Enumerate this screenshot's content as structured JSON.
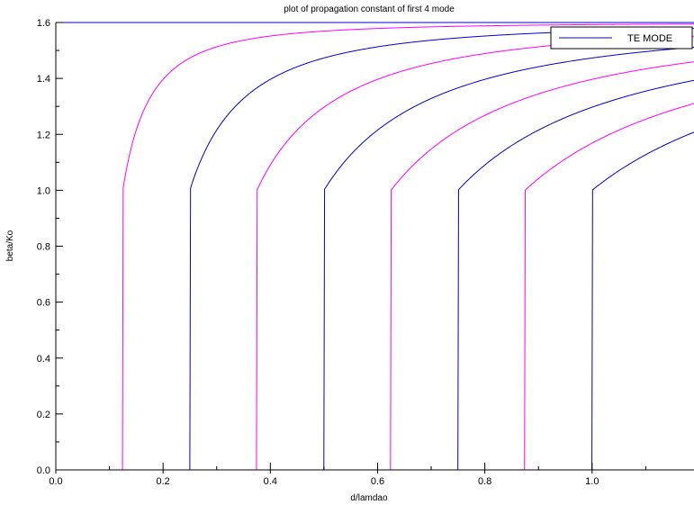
{
  "chart_data": {
    "type": "line",
    "title": "plot of propagation constant of first 4 mode",
    "xlabel": "d/lamdao",
    "ylabel": "beta/Ko",
    "xlim": [
      0.0,
      1.19
    ],
    "ylim": [
      0.0,
      1.6
    ],
    "x_ticks": [
      "0.0",
      "0.2",
      "0.4",
      "0.6",
      "0.8",
      "1.0"
    ],
    "y_ticks": [
      "0.0",
      "0.2",
      "0.4",
      "0.6",
      "0.8",
      "1.0",
      "1.2",
      "1.4",
      "1.6"
    ],
    "grid": false,
    "legend": {
      "position": "top-right",
      "entries": [
        {
          "label": "TE MODE",
          "color": "#0000cc"
        }
      ]
    },
    "colors": {
      "te": "#0000cc",
      "tm": "#ff00ff"
    },
    "parameters": {
      "n_max": 1.6,
      "n_min": 1.0
    },
    "series": [
      {
        "color": "#ff00ff",
        "cutoff": 0.125,
        "n_sub": 1.0,
        "n_core": 1.6
      },
      {
        "color": "#0000cc",
        "cutoff": 0.25,
        "n_sub": 1.0,
        "n_core": 1.6
      },
      {
        "color": "#ff00ff",
        "cutoff": 0.375,
        "n_sub": 1.0,
        "n_core": 1.6
      },
      {
        "color": "#0000cc",
        "cutoff": 0.5,
        "n_sub": 1.0,
        "n_core": 1.6
      },
      {
        "color": "#ff00ff",
        "cutoff": 0.625,
        "n_sub": 1.0,
        "n_core": 1.6
      },
      {
        "color": "#0000cc",
        "cutoff": 0.75,
        "n_sub": 1.0,
        "n_core": 1.6
      },
      {
        "color": "#ff00ff",
        "cutoff": 0.875,
        "n_sub": 1.0,
        "n_core": 1.6
      },
      {
        "color": "#0000cc",
        "cutoff": 1.0,
        "n_sub": 1.0,
        "n_core": 1.6
      }
    ]
  }
}
